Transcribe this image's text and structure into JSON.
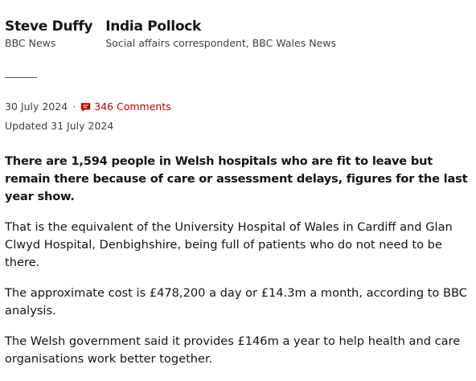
{
  "authors": [
    {
      "name": "Steve Duffy",
      "role": "BBC News"
    },
    {
      "name": "India Pollock",
      "role": "Social affairs correspondent, BBC Wales News"
    }
  ],
  "meta": {
    "date": "30 July 2024",
    "separator": "·",
    "comments_label": "346 Comments",
    "comments_icon": "comment-icon",
    "updated": "Updated 31 July 2024"
  },
  "colors": {
    "accent": "#b80000",
    "text": "#141414",
    "muted": "#3f3f42"
  },
  "article": {
    "lead": "There are 1,594 people in Welsh hospitals who are fit to leave but remain there because of care or assessment delays, figures for the last year show.",
    "paragraphs": [
      "That is the equivalent of the University Hospital of Wales in Cardiff and Glan Clwyd Hospital, Denbighshire, being full of patients who do not need to be there.",
      "The approximate cost is £478,200 a day or £14.3m a month, according to BBC analysis.",
      "The Welsh government said it provides £146m a year to help health and care organisations work better together."
    ]
  }
}
